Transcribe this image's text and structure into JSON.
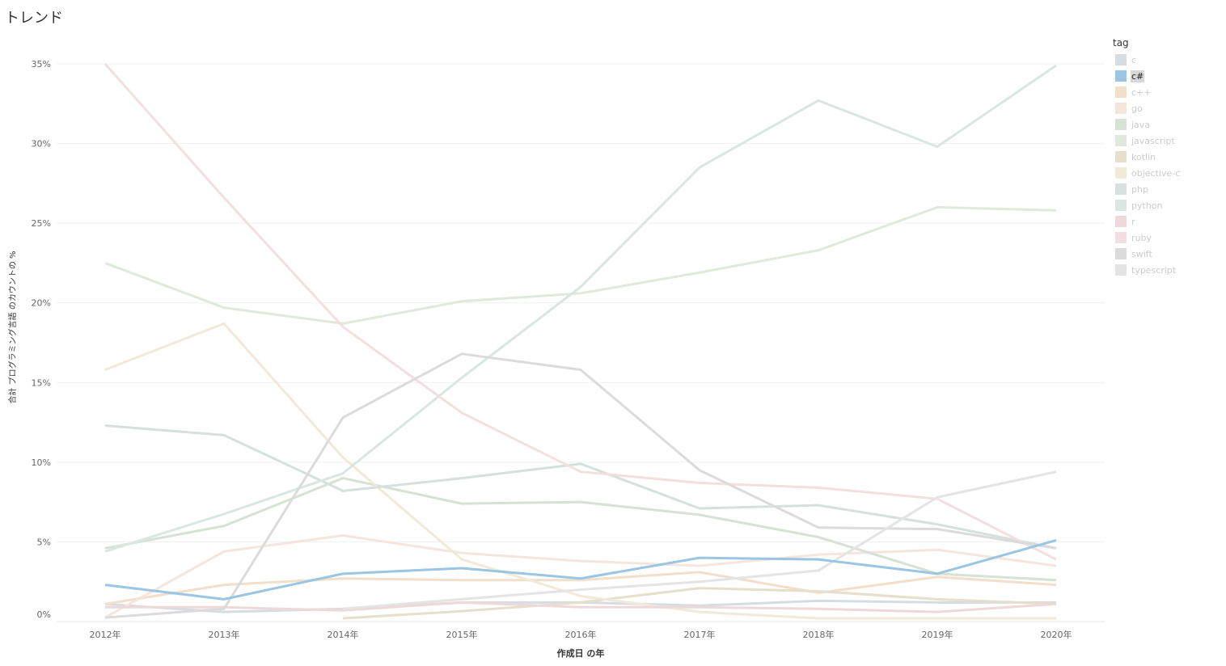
{
  "title": "トレンド",
  "legend_title": "tag",
  "highlighted": "c#",
  "chart_data": {
    "type": "line",
    "title": "トレンド",
    "xlabel": "作成日 の年",
    "ylabel": "合計 プログラミング言語 のカウントの %",
    "categories": [
      "2012年",
      "2013年",
      "2014年",
      "2015年",
      "2016年",
      "2017年",
      "2018年",
      "2019年",
      "2020年"
    ],
    "y_ticks": [
      "0%",
      "5%",
      "10%",
      "15%",
      "20%",
      "25%",
      "30%",
      "35%"
    ],
    "ylim": [
      0,
      35
    ],
    "grid": true,
    "legend_position": "right",
    "series": [
      {
        "name": "c",
        "color": "#d5dde3",
        "values": [
          1.1,
          0.6,
          0.8,
          1.2,
          1.2,
          1.0,
          1.3,
          1.2,
          1.2
        ]
      },
      {
        "name": "c#",
        "color": "#9ac5e3",
        "values": [
          2.3,
          1.4,
          3.0,
          3.35,
          2.7,
          4.0,
          3.9,
          3.0,
          5.1
        ]
      },
      {
        "name": "c++",
        "color": "#f2dfcb",
        "values": [
          1.1,
          2.3,
          2.7,
          2.6,
          2.6,
          3.1,
          1.8,
          2.8,
          2.3
        ]
      },
      {
        "name": "go",
        "color": "#f4e6dc",
        "values": [
          0.25,
          4.4,
          5.4,
          4.3,
          3.8,
          3.5,
          4.2,
          4.5,
          3.5
        ]
      },
      {
        "name": "java",
        "color": "#d6e2d3",
        "values": [
          4.6,
          6.0,
          9.0,
          7.4,
          7.5,
          6.7,
          5.3,
          3.0,
          2.6
        ]
      },
      {
        "name": "javascript",
        "color": "#e0eadb",
        "values": [
          22.5,
          19.7,
          18.7,
          20.1,
          20.6,
          21.9,
          23.3,
          26.0,
          25.8
        ]
      },
      {
        "name": "kotlin",
        "color": "#e5dfcb",
        "values": [
          null,
          null,
          0.2,
          0.65,
          1.2,
          2.1,
          1.9,
          1.4,
          1.1
        ]
      },
      {
        "name": "objective-c",
        "color": "#f1ead9",
        "values": [
          15.8,
          18.7,
          10.3,
          3.9,
          1.6,
          0.6,
          0.2,
          0.2,
          0.2
        ]
      },
      {
        "name": "php",
        "color": "#d4e1df",
        "values": [
          12.3,
          11.7,
          8.2,
          9.0,
          9.9,
          7.1,
          7.3,
          6.1,
          4.6
        ]
      },
      {
        "name": "python",
        "color": "#dae6e1",
        "values": [
          4.4,
          6.75,
          9.3,
          15.3,
          21.0,
          28.5,
          32.7,
          29.8,
          34.9
        ]
      },
      {
        "name": "r",
        "color": "#efd8da",
        "values": [
          0.9,
          0.9,
          0.7,
          1.2,
          0.9,
          0.9,
          0.8,
          0.6,
          1.1
        ]
      },
      {
        "name": "ruby",
        "color": "#f3dfe0",
        "values": [
          35.0,
          26.6,
          18.5,
          13.1,
          9.4,
          8.7,
          8.4,
          7.7,
          3.9
        ]
      },
      {
        "name": "swift",
        "color": "#dcdbdc",
        "values": [
          0.25,
          0.8,
          12.8,
          16.8,
          15.8,
          9.5,
          5.9,
          5.8,
          4.6
        ]
      },
      {
        "name": "typescript",
        "color": "#e5e4e4",
        "values": [
          null,
          null,
          0.8,
          1.4,
          2.0,
          2.5,
          3.2,
          7.8,
          9.4
        ]
      }
    ]
  }
}
